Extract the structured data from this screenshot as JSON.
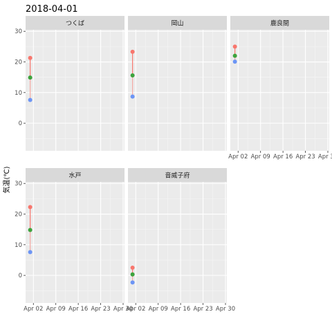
{
  "chart_data": {
    "type": "scatter",
    "title": "2018-04-01",
    "ylabel": "気温(℃)",
    "xlabel": "",
    "ylim": [
      -9,
      30.5
    ],
    "yticks": [
      0,
      10,
      20,
      30
    ],
    "xlim": [
      "2018-03-31",
      "2018-04-30"
    ],
    "xticks": [
      {
        "date": "2018-04-02",
        "label": "Apr 02"
      },
      {
        "date": "2018-04-09",
        "label": "Apr 09"
      },
      {
        "date": "2018-04-16",
        "label": "Apr 16"
      },
      {
        "date": "2018-04-23",
        "label": "Apr 23"
      },
      {
        "date": "2018-04-30",
        "label": "Apr 30"
      }
    ],
    "grid": true,
    "colors": {
      "max": "#F8766D",
      "mean": "#3DA33D",
      "min": "#6C95F5",
      "panel_bg": "#EBEBEB",
      "strip_bg": "#D9D9D9"
    },
    "facets": [
      {
        "name": "つくば",
        "date": "2018-04-01",
        "max": 21.3,
        "mean": 14.9,
        "min": 7.6
      },
      {
        "name": "岡山",
        "date": "2018-04-01",
        "max": 23.3,
        "mean": 15.6,
        "min": 8.7
      },
      {
        "name": "鹿良間",
        "date": "2018-04-01",
        "max": 25.0,
        "mean": 22.0,
        "min": 20.1
      },
      {
        "name": "水戸",
        "date": "2018-04-01",
        "max": 22.3,
        "mean": 14.8,
        "min": 7.6
      },
      {
        "name": "音威子府",
        "date": "2018-04-01",
        "max": 2.5,
        "mean": 0.3,
        "min": -2.3
      }
    ]
  }
}
